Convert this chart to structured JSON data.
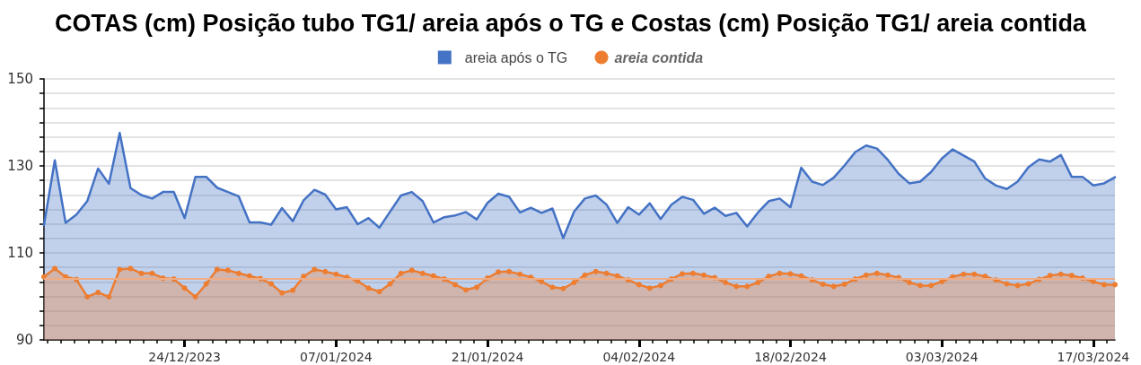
{
  "chart_data": {
    "type": "area",
    "title": "COTAS (cm) Posição tubo TG1/ areia após o TG e Costas (cm) Posição TG1/ areia contida",
    "x": [
      "2023-12-11",
      "2023-12-12",
      "2023-12-13",
      "2023-12-14",
      "2023-12-15",
      "2023-12-16",
      "2023-12-17",
      "2023-12-18",
      "2023-12-19",
      "2023-12-20",
      "2023-12-21",
      "2023-12-22",
      "2023-12-23",
      "2023-12-24",
      "2023-12-25",
      "2023-12-26",
      "2023-12-27",
      "2023-12-28",
      "2023-12-29",
      "2023-12-30",
      "2023-12-31",
      "2024-01-01",
      "2024-01-02",
      "2024-01-03",
      "2024-01-04",
      "2024-01-05",
      "2024-01-06",
      "2024-01-07",
      "2024-01-08",
      "2024-01-09",
      "2024-01-10",
      "2024-01-11",
      "2024-01-12",
      "2024-01-13",
      "2024-01-14",
      "2024-01-15",
      "2024-01-16",
      "2024-01-17",
      "2024-01-18",
      "2024-01-19",
      "2024-01-20",
      "2024-01-21",
      "2024-01-22",
      "2024-01-23",
      "2024-01-24",
      "2024-01-25",
      "2024-01-26",
      "2024-01-27",
      "2024-01-28",
      "2024-01-29",
      "2024-01-30",
      "2024-01-31",
      "2024-02-01",
      "2024-02-02",
      "2024-02-03",
      "2024-02-04",
      "2024-02-05",
      "2024-02-06",
      "2024-02-07",
      "2024-02-08",
      "2024-02-09",
      "2024-02-10",
      "2024-02-11",
      "2024-02-12",
      "2024-02-13",
      "2024-02-14",
      "2024-02-15",
      "2024-02-16",
      "2024-02-17",
      "2024-02-18",
      "2024-02-19",
      "2024-02-20",
      "2024-02-21",
      "2024-02-22",
      "2024-02-23",
      "2024-02-24",
      "2024-02-25",
      "2024-02-26",
      "2024-02-27",
      "2024-02-28",
      "2024-02-29",
      "2024-03-01",
      "2024-03-02",
      "2024-03-03",
      "2024-03-04",
      "2024-03-05",
      "2024-03-06",
      "2024-03-07",
      "2024-03-08",
      "2024-03-09",
      "2024-03-10",
      "2024-03-11",
      "2024-03-12",
      "2024-03-13",
      "2024-03-14",
      "2024-03-15",
      "2024-03-16",
      "2024-03-17",
      "2024-03-18",
      "2024-03-19"
    ],
    "series": [
      {
        "name": "areia após o TG",
        "color": "#4472c4",
        "marker": "none",
        "values": [
          116.4,
          131.3,
          116.9,
          118.8,
          121.9,
          129.4,
          125.9,
          137.6,
          124.9,
          123.3,
          122.5,
          124.0,
          124.0,
          118.0,
          127.5,
          127.5,
          125.0,
          124.0,
          123.0,
          117.0,
          117.0,
          116.5,
          120.3,
          117.3,
          122.1,
          124.5,
          123.4,
          120.0,
          120.5,
          116.6,
          118.0,
          115.8,
          119.5,
          123.2,
          124.0,
          121.9,
          117.0,
          118.2,
          118.6,
          119.4,
          117.7,
          121.5,
          123.6,
          122.9,
          119.3,
          120.4,
          119.2,
          120.2,
          113.4,
          119.5,
          122.5,
          123.2,
          121.1,
          116.9,
          120.5,
          118.8,
          121.4,
          117.8,
          121.1,
          122.9,
          122.2,
          119.0,
          120.4,
          118.5,
          119.2,
          116.1,
          119.3,
          121.9,
          122.5,
          120.5,
          129.6,
          126.4,
          125.6,
          127.3,
          130.1,
          133.2,
          134.7,
          134.0,
          131.4,
          128.2,
          126.0,
          126.4,
          128.6,
          131.7,
          133.8,
          132.4,
          131.0,
          127.1,
          125.5,
          124.7,
          126.4,
          129.7,
          131.5,
          131.0,
          132.5,
          127.5,
          127.5,
          125.5,
          126.0,
          127.4
        ]
      },
      {
        "name": "areia contida",
        "color": "#ed7d31",
        "marker": "circle",
        "values": [
          104.5,
          106.4,
          104.5,
          103.9,
          99.9,
          100.9,
          99.9,
          106.2,
          106.4,
          105.3,
          105.3,
          104.2,
          104.0,
          101.9,
          99.9,
          102.9,
          106.2,
          106.0,
          105.3,
          104.7,
          104.1,
          102.9,
          100.8,
          101.4,
          104.6,
          106.2,
          105.7,
          105.1,
          104.4,
          103.5,
          101.9,
          101.1,
          102.9,
          105.3,
          106.0,
          105.3,
          104.7,
          104.0,
          102.7,
          101.5,
          102.1,
          104.2,
          105.6,
          105.7,
          105.1,
          104.4,
          103.4,
          102.1,
          101.8,
          103.2,
          104.9,
          105.7,
          105.3,
          104.7,
          103.8,
          102.7,
          101.9,
          102.5,
          104.0,
          105.2,
          105.3,
          104.9,
          104.3,
          103.2,
          102.3,
          102.3,
          103.2,
          104.6,
          105.3,
          105.2,
          104.7,
          103.8,
          102.8,
          102.3,
          102.8,
          104.0,
          104.9,
          105.3,
          104.9,
          104.3,
          103.2,
          102.5,
          102.5,
          103.4,
          104.5,
          105.1,
          105.1,
          104.6,
          103.8,
          102.9,
          102.5,
          102.9,
          103.9,
          104.8,
          105.1,
          104.8,
          104.2,
          103.4,
          102.7,
          102.7
        ]
      }
    ],
    "xlim": [
      "2023-12-11",
      "2024-03-19"
    ],
    "xticks": [
      {
        "value": "2023-12-24",
        "label": "24/12/2023"
      },
      {
        "value": "2024-01-07",
        "label": "07/01/2024"
      },
      {
        "value": "2024-01-21",
        "label": "21/01/2024"
      },
      {
        "value": "2024-02-04",
        "label": "04/02/2024"
      },
      {
        "value": "2024-02-18",
        "label": "18/02/2024"
      },
      {
        "value": "2024-03-03",
        "label": "03/03/2024"
      },
      {
        "value": "2024-03-17",
        "label": "17/03/2024"
      }
    ],
    "ylim": [
      90,
      150
    ],
    "yticks": [
      90,
      110,
      130,
      150
    ],
    "ref_lines": [
      {
        "axis": "y",
        "value": 104,
        "color": "#efad85"
      }
    ],
    "grid": "y",
    "legend": "top"
  }
}
